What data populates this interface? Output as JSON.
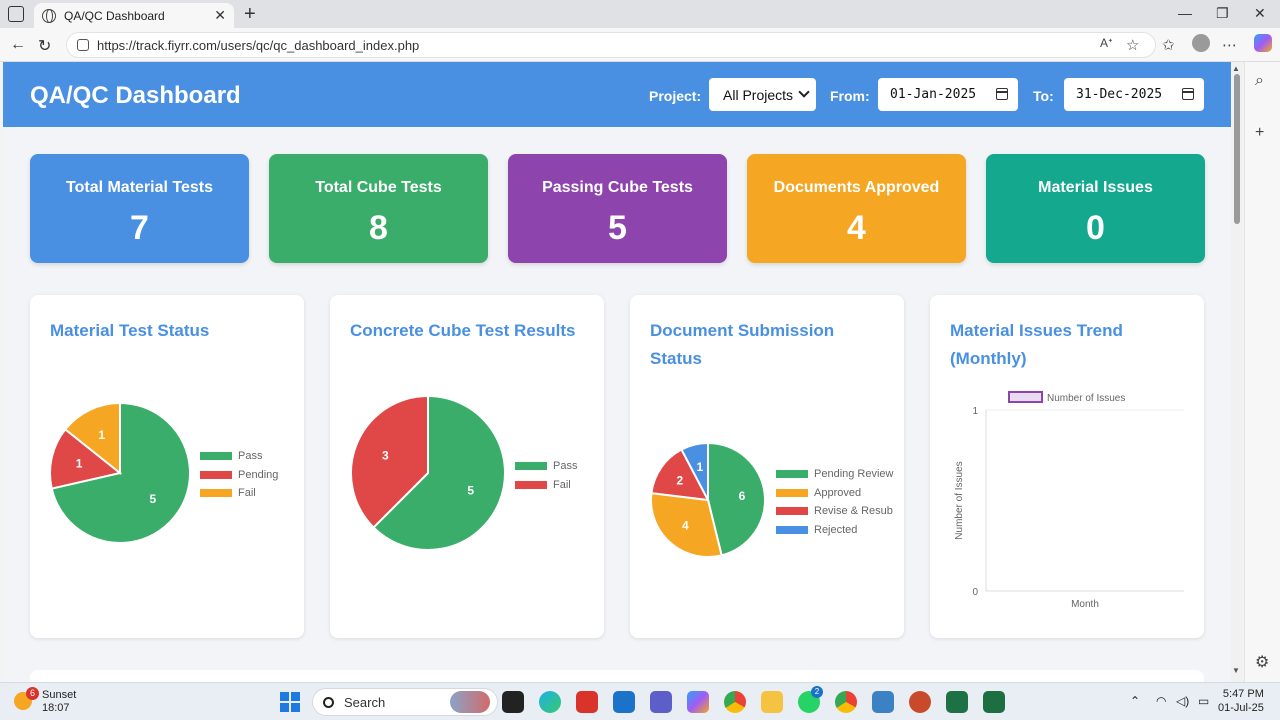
{
  "browser": {
    "tab_title": "QA/QC Dashboard",
    "tab_close": "✕",
    "new_tab": "+",
    "url": "https://track.fiyrr.com/users/qc/qc_dashboard_index.php"
  },
  "header": {
    "title": "QA/QC Dashboard",
    "project_label": "Project:",
    "project_value": "All Projects",
    "from_label": "From:",
    "from_value": "01-Jan-2025",
    "to_label": "To:",
    "to_value": "31-Dec-2025"
  },
  "stats": [
    {
      "title": "Total Material Tests",
      "value": "7",
      "color": "#4a90e2"
    },
    {
      "title": "Total Cube Tests",
      "value": "8",
      "color": "#3aad6a"
    },
    {
      "title": "Passing Cube Tests",
      "value": "5",
      "color": "#8e44ad"
    },
    {
      "title": "Documents Approved",
      "value": "4",
      "color": "#f5a623"
    },
    {
      "title": "Material Issues",
      "value": "0",
      "color": "#14a88f"
    }
  ],
  "chart_data": [
    {
      "type": "pie",
      "title": "Material Test Status",
      "categories": [
        "Pass",
        "Pending",
        "Fail"
      ],
      "values": [
        5,
        1,
        1
      ],
      "colors": [
        "#3aad6a",
        "#e04848",
        "#f5a623"
      ],
      "legend": "right"
    },
    {
      "type": "pie",
      "title": "Concrete Cube Test Results",
      "categories": [
        "Pass",
        "Fail"
      ],
      "values": [
        5,
        3
      ],
      "colors": [
        "#3aad6a",
        "#e04848"
      ],
      "legend": "right"
    },
    {
      "type": "pie",
      "title": "Document Submission Status",
      "categories": [
        "Pending Review",
        "Approved",
        "Revise & Resubmit",
        "Rejected"
      ],
      "legend_labels": [
        "Pending Review",
        "Approved",
        "Revise & Resub",
        "Rejected"
      ],
      "values": [
        6,
        4,
        2,
        1
      ],
      "colors": [
        "#3aad6a",
        "#f5a623",
        "#e04848",
        "#4a90e2"
      ],
      "legend": "right"
    },
    {
      "type": "line",
      "title": "Material Issues Trend (Monthly)",
      "series": [
        {
          "name": "Number of Issues",
          "values": []
        }
      ],
      "x": [],
      "xlabel": "Month",
      "ylabel": "Number of Issues",
      "ylim": [
        0,
        1
      ],
      "yticks": [
        "1",
        "0"
      ],
      "series_color": "#8e44ad",
      "legend": "top"
    }
  ],
  "taskbar": {
    "weather_badge": "6",
    "weather_label": "Sunset",
    "weather_time": "18:07",
    "search_placeholder": "Search",
    "time": "5:47 PM",
    "date": "01-Jul-25",
    "app_badges": [
      "2"
    ]
  }
}
